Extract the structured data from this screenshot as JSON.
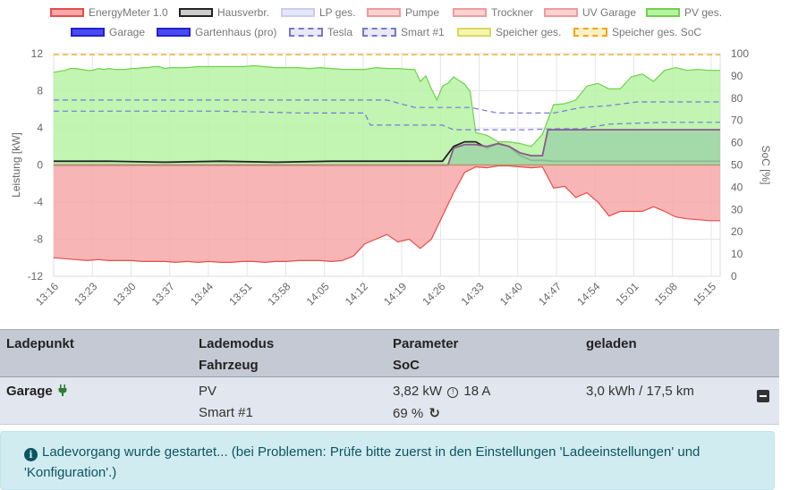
{
  "legend": [
    {
      "label": "EnergyMeter 1.0",
      "fill": "#f7a8a8",
      "border": "#e74c4c",
      "dashed": false
    },
    {
      "label": "Hausverbr.",
      "fill": "#cccccc",
      "border": "#222222",
      "dashed": false
    },
    {
      "label": "LP ges.",
      "fill": "#e6e6fa",
      "border": "#ccccf0",
      "dashed": false
    },
    {
      "label": "Pumpe",
      "fill": "#fbd2d2",
      "border": "#f19a9a",
      "dashed": false
    },
    {
      "label": "Trockner",
      "fill": "#fbd2d2",
      "border": "#f19a9a",
      "dashed": false
    },
    {
      "label": "UV Garage",
      "fill": "#fbd2d2",
      "border": "#f19a9a",
      "dashed": false
    },
    {
      "label": "PV ges.",
      "fill": "#b6f3a3",
      "border": "#6fd24a",
      "dashed": false
    },
    {
      "label": "Garage",
      "fill": "#4a4af2",
      "border": "#2222cc",
      "dashed": false
    },
    {
      "label": "Gartenhaus (pro)",
      "fill": "#4a4af2",
      "border": "#2222cc",
      "dashed": false
    },
    {
      "label": "Tesla",
      "fill": "#e8e8f6",
      "border": "#7777cc",
      "dashed": true
    },
    {
      "label": "Smart #1",
      "fill": "#e8e8f6",
      "border": "#7777cc",
      "dashed": true
    },
    {
      "label": "Speicher ges.",
      "fill": "#f6f6b0",
      "border": "#d8d860",
      "dashed": false
    },
    {
      "label": "Speicher ges. SoC",
      "fill": "#fbf0c8",
      "border": "#f5a500",
      "dashed": true
    }
  ],
  "chart_data": {
    "type": "area",
    "xlabel": "",
    "ylabel": "Leistung [kW]",
    "ylabel_right": "SoC [%]",
    "ylim": [
      -12,
      12
    ],
    "ylim_right": [
      0,
      100
    ],
    "yticks": [
      "12",
      "8",
      "4",
      "0",
      "-4",
      "-8",
      "-12"
    ],
    "yticks_right": [
      "100",
      "90",
      "80",
      "70",
      "60",
      "50",
      "40",
      "30",
      "20",
      "10",
      "0"
    ],
    "xticks": [
      "13:16",
      "13:23",
      "13:30",
      "13:37",
      "13:44",
      "13:51",
      "13:58",
      "14:05",
      "14:12",
      "14:19",
      "14:26",
      "14:33",
      "14:40",
      "14:47",
      "14:54",
      "15:01",
      "15:08",
      "15:15"
    ],
    "grid": true,
    "series": [
      {
        "name": "PV ges.",
        "color": "#6fd24a",
        "fill": "#b6f3a3",
        "x": [
          0,
          2,
          3,
          4,
          5,
          6,
          7,
          8,
          9,
          10,
          11,
          12,
          13,
          14,
          15,
          16,
          17,
          18,
          19,
          20,
          21,
          22,
          24,
          26,
          28,
          30,
          32,
          34,
          36,
          38,
          40,
          42,
          44,
          46,
          48,
          50,
          52,
          54,
          56,
          58,
          60,
          62,
          64,
          65,
          66,
          67,
          68,
          69,
          70,
          71,
          72,
          73,
          74,
          75,
          76,
          78,
          80,
          82,
          84,
          86,
          88,
          90,
          92,
          94,
          96,
          98,
          100,
          102,
          104,
          106,
          108,
          110,
          112,
          114,
          116,
          118,
          120
        ],
        "values": [
          10.0,
          10.2,
          10.4,
          10.4,
          10.3,
          10.2,
          10.2,
          10.4,
          10.3,
          10.4,
          10.3,
          10.3,
          10.3,
          10.4,
          10.4,
          10.5,
          10.5,
          10.6,
          10.6,
          10.4,
          10.5,
          10.5,
          10.5,
          10.6,
          10.6,
          10.6,
          10.6,
          10.6,
          10.7,
          10.6,
          10.5,
          10.5,
          10.5,
          10.4,
          10.5,
          10.4,
          10.3,
          10.3,
          10.3,
          10.5,
          10.4,
          10.4,
          10.3,
          10.3,
          9.0,
          9.6,
          8.2,
          7.0,
          8.5,
          8.8,
          9.5,
          9.1,
          8.7,
          7.9,
          3.5,
          3.2,
          2.5,
          2.5,
          2.3,
          2.0,
          3.3,
          6.5,
          6.6,
          7.0,
          8.5,
          8.8,
          8.2,
          8.2,
          9.5,
          9.8,
          9.0,
          10.2,
          10.5,
          10.2,
          10.3,
          10.2,
          10.2
        ]
      },
      {
        "name": "EnergyMeter 1.0",
        "color": "#e74c4c",
        "fill": "#f7a8a8",
        "x": [
          0,
          2,
          4,
          6,
          8,
          10,
          12,
          14,
          16,
          18,
          20,
          22,
          24,
          26,
          28,
          30,
          32,
          34,
          36,
          38,
          40,
          42,
          44,
          46,
          48,
          50,
          52,
          54,
          56,
          58,
          60,
          62,
          64,
          66,
          68,
          70,
          72,
          74,
          76,
          78,
          80,
          82,
          84,
          86,
          88,
          90,
          92,
          94,
          96,
          98,
          100,
          102,
          104,
          106,
          108,
          110,
          112,
          114,
          116,
          118,
          120
        ],
        "values": [
          -10.0,
          -10.1,
          -10.2,
          -10.3,
          -10.2,
          -10.3,
          -10.3,
          -10.3,
          -10.4,
          -10.4,
          -10.4,
          -10.5,
          -10.4,
          -10.5,
          -10.4,
          -10.5,
          -10.5,
          -10.4,
          -10.4,
          -10.5,
          -10.4,
          -10.4,
          -10.3,
          -10.3,
          -10.3,
          -10.4,
          -10.3,
          -9.8,
          -8.5,
          -8.0,
          -7.5,
          -8.3,
          -8.0,
          -9.0,
          -8.0,
          -5.5,
          -3.0,
          -0.8,
          -0.2,
          -0.3,
          -0.1,
          -0.1,
          -0.2,
          -0.3,
          -0.2,
          -2.5,
          -2.3,
          -3.5,
          -3.0,
          -4.0,
          -5.5,
          -5.0,
          -5.0,
          -5.0,
          -4.5,
          -5.0,
          -5.6,
          -5.8,
          -5.9,
          -6.0,
          -6.0
        ]
      },
      {
        "name": "Hausverbr.",
        "color": "#222222",
        "fill": "none",
        "x": [
          0,
          10,
          20,
          30,
          40,
          50,
          60,
          70,
          72,
          74,
          76,
          78,
          80,
          82,
          84,
          86,
          88,
          90,
          92,
          100,
          110,
          120
        ],
        "values": [
          0.4,
          0.4,
          0.3,
          0.4,
          0.3,
          0.4,
          0.4,
          0.4,
          2.0,
          2.5,
          2.5,
          1.8,
          2.3,
          2.0,
          1.0,
          0.5,
          0.5,
          0.4,
          0.4,
          0.4,
          0.4,
          0.4
        ]
      },
      {
        "name": "Garage",
        "color": "#8a5a8a",
        "fill": "#9fd5a8",
        "x": [
          0,
          71,
          72,
          74,
          76,
          78,
          80,
          82,
          84,
          86,
          88,
          89,
          90,
          92,
          100,
          110,
          120
        ],
        "values": [
          0,
          0,
          1.8,
          2.2,
          2.2,
          2.0,
          2.3,
          2.0,
          1.3,
          1.0,
          1.0,
          3.8,
          3.8,
          3.8,
          3.8,
          3.8,
          3.8
        ]
      },
      {
        "name": "Tesla",
        "color": "#7777dd",
        "fill": "none",
        "x": [
          0,
          30,
          60,
          65,
          70,
          75,
          80,
          85,
          90,
          95,
          100,
          105,
          110,
          115,
          120
        ],
        "values": [
          7.0,
          7.0,
          7.0,
          6.2,
          6.2,
          6.2,
          5.6,
          5.6,
          5.6,
          6.2,
          6.4,
          6.8,
          6.8,
          6.8,
          6.8
        ]
      },
      {
        "name": "Smart #1",
        "color": "#7777dd",
        "fill": "none",
        "x": [
          0,
          30,
          45,
          56,
          57,
          70,
          72,
          80,
          85,
          90,
          95,
          100,
          110,
          120
        ],
        "values": [
          5.8,
          5.8,
          5.6,
          5.6,
          4.3,
          4.3,
          3.8,
          3.8,
          3.8,
          3.9,
          3.9,
          4.4,
          4.6,
          4.6
        ]
      },
      {
        "name": "Speicher ges. SoC",
        "color": "#f5a500",
        "fill": "none",
        "axis": "right",
        "x": [
          0,
          120
        ],
        "values": [
          99.5,
          99.5
        ]
      }
    ]
  },
  "table": {
    "headers": {
      "col1": "Ladepunkt",
      "col2_line1": "Lademodus",
      "col2_line2": "Fahrzeug",
      "col3_line1": "Parameter",
      "col3_line2": "SoC",
      "col4": "geladen"
    },
    "rows": [
      {
        "name": "Garage",
        "mode": "PV",
        "vehicle": "Smart #1",
        "power": "3,82 kW",
        "current": "18 A",
        "soc": "69 %",
        "charged": "3,0 kWh / 17,5 km"
      }
    ]
  },
  "alert": {
    "message": "Ladevorgang wurde gestartet... (bei Problemen: Prüfe bitte zuerst in den Einstellungen 'Ladeeinstellungen' und 'Konfiguration'.)"
  }
}
